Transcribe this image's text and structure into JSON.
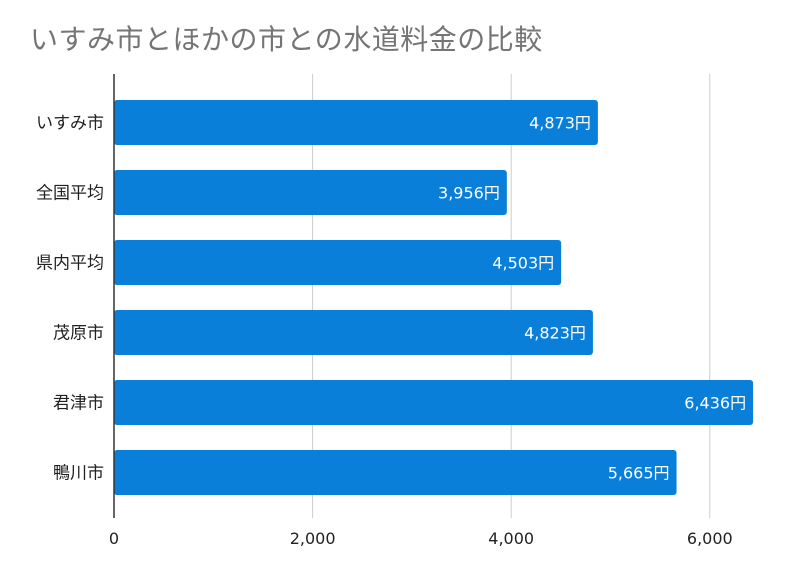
{
  "chart_data": {
    "type": "bar",
    "orientation": "horizontal",
    "title": "いすみ市とほかの市との水道料金の比較",
    "categories": [
      "いすみ市",
      "全国平均",
      "県内平均",
      "茂原市",
      "君津市",
      "鴨川市"
    ],
    "values": [
      4873,
      3956,
      4503,
      4823,
      6436,
      5665
    ],
    "data_labels": [
      "4,873円",
      "3,956円",
      "4,503円",
      "4,823円",
      "6,436円",
      "5,665円"
    ],
    "x_ticks": [
      0,
      2000,
      4000,
      6000
    ],
    "x_tick_labels": [
      "0",
      "2,000",
      "4,000",
      "6,000"
    ],
    "xlim": [
      0,
      6500
    ],
    "grid": true,
    "bar_color": "#0a7fd9"
  }
}
